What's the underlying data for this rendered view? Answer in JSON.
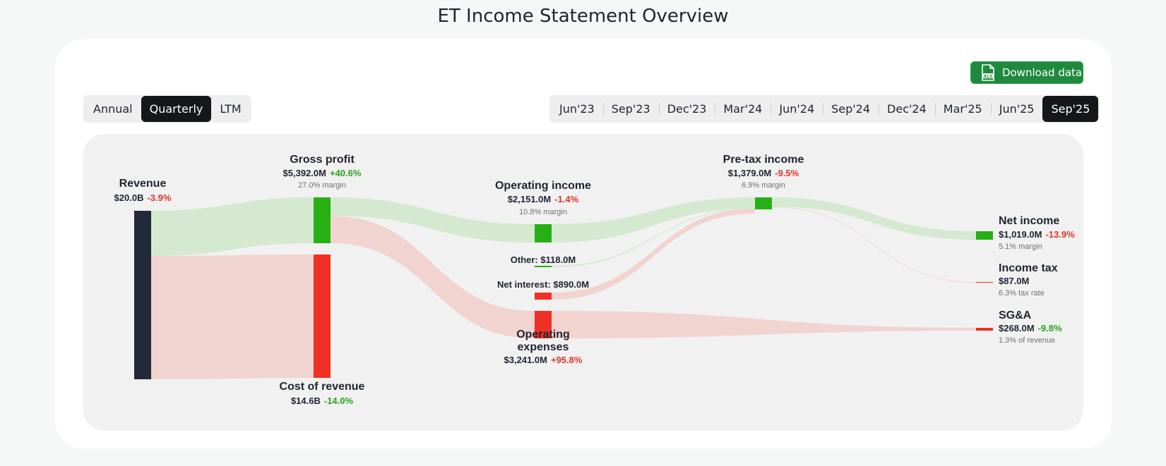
{
  "title": "ET Income Statement Overview",
  "download_label": "Download data",
  "download_icon": "xls-file-icon",
  "period_type": {
    "options": [
      "Annual",
      "Quarterly",
      "LTM"
    ],
    "selected": "Quarterly"
  },
  "periods": {
    "options": [
      "Jun'23",
      "Sep'23",
      "Dec'23",
      "Mar'24",
      "Jun'24",
      "Sep'24",
      "Dec'24",
      "Mar'25",
      "Jun'25",
      "Sep'25"
    ],
    "selected": "Sep'25"
  },
  "colors": {
    "revenue": "#222938",
    "profit": "#27b014",
    "cost": "#ee3124",
    "profit_flow": "#d4e9d0",
    "cost_flow": "#f1d3d0",
    "positive_text": "#27a51b",
    "negative_text": "#e0342a"
  },
  "chart_data": {
    "type": "sankey",
    "title": "ET Income Statement Overview",
    "nodes": [
      {
        "id": "revenue",
        "name": "Revenue",
        "value_label": "$20.0B",
        "change": "-3.9%",
        "change_sign": "negative",
        "value_musd": 20000
      },
      {
        "id": "gross_profit",
        "name": "Gross profit",
        "value_label": "$5,392.0M",
        "change": "+40.6%",
        "change_sign": "positive",
        "note": "27.0% margin",
        "value_musd": 5392
      },
      {
        "id": "cost_of_revenue",
        "name": "Cost of revenue",
        "value_label": "$14.6B",
        "change": "-14.0%",
        "change_sign": "positive",
        "value_musd": 14600
      },
      {
        "id": "operating_income",
        "name": "Operating income",
        "value_label": "$2,151.0M",
        "change": "-1.4%",
        "change_sign": "negative",
        "note": "10.8% margin",
        "value_musd": 2151
      },
      {
        "id": "other",
        "name": "Other: $118.0M",
        "value_musd": 118
      },
      {
        "id": "net_interest",
        "name": "Net interest: $890.0M",
        "value_musd": 890
      },
      {
        "id": "operating_expenses",
        "name": "Operating expenses",
        "value_label": "$3,241.0M",
        "change": "+95.8%",
        "change_sign": "negative",
        "value_musd": 3241
      },
      {
        "id": "pretax_income",
        "name": "Pre-tax income",
        "value_label": "$1,379.0M",
        "change": "-9.5%",
        "change_sign": "negative",
        "note": "6.9% margin",
        "value_musd": 1379
      },
      {
        "id": "net_income",
        "name": "Net income",
        "value_label": "$1,019.0M",
        "change": "-13.9%",
        "change_sign": "negative",
        "note": "5.1% margin",
        "value_musd": 1019
      },
      {
        "id": "income_tax",
        "name": "Income tax",
        "value_label": "$87.0M",
        "note": "6.3% tax rate",
        "value_musd": 87
      },
      {
        "id": "sga",
        "name": "SG&A",
        "value_label": "$268.0M",
        "change": "-9.8%",
        "change_sign": "positive",
        "note": "1.3% of revenue",
        "value_musd": 268
      }
    ],
    "links": [
      {
        "source": "revenue",
        "target": "gross_profit",
        "value_musd": 5392
      },
      {
        "source": "revenue",
        "target": "cost_of_revenue",
        "value_musd": 14600
      },
      {
        "source": "gross_profit",
        "target": "operating_income",
        "value_musd": 2151
      },
      {
        "source": "gross_profit",
        "target": "operating_expenses",
        "value_musd": 3241
      },
      {
        "source": "operating_income",
        "target": "pretax_income",
        "value_musd": 2151
      },
      {
        "source": "other",
        "target": "pretax_income",
        "value_musd": 118
      },
      {
        "source": "net_interest",
        "target": "pretax_income",
        "value_musd": 890
      },
      {
        "source": "pretax_income",
        "target": "net_income",
        "value_musd": 1019
      },
      {
        "source": "pretax_income",
        "target": "income_tax",
        "value_musd": 87
      },
      {
        "source": "operating_expenses",
        "target": "sga",
        "value_musd": 268
      }
    ]
  }
}
